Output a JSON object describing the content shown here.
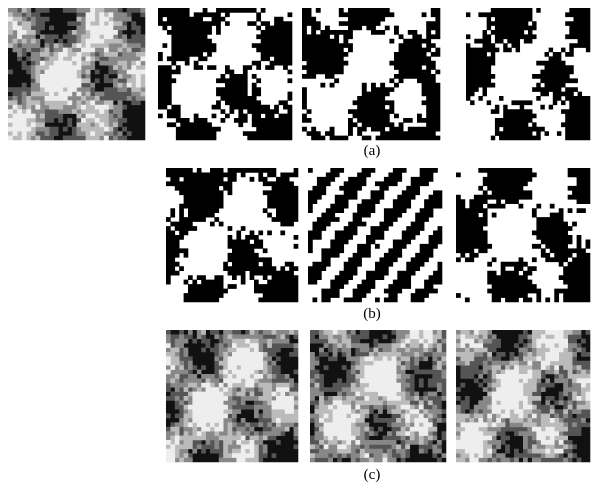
{
  "figure": {
    "labels": [
      "(a)",
      "(b)",
      "(c)"
    ]
  }
}
